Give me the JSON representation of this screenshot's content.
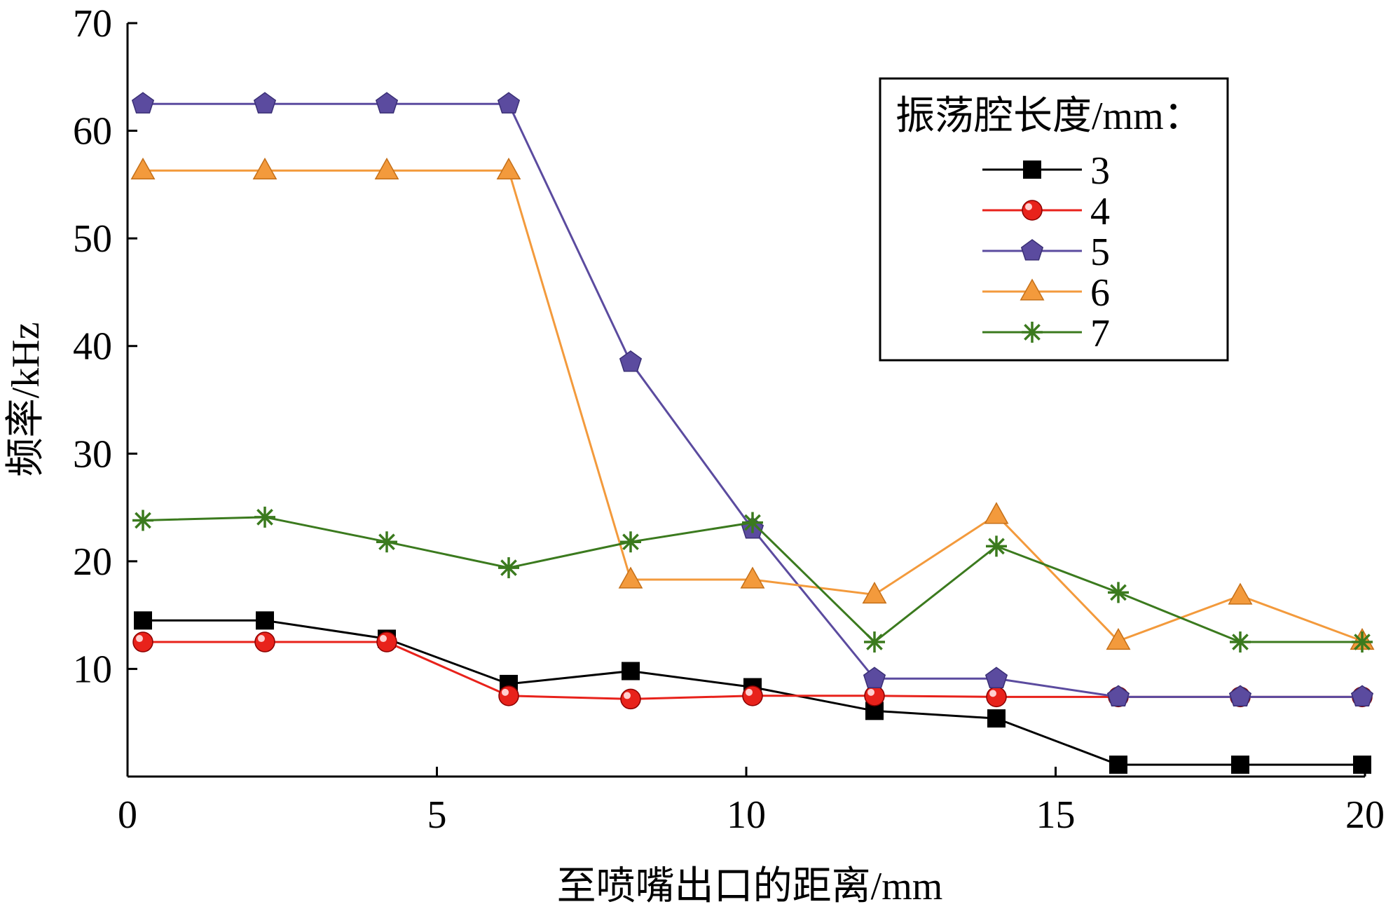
{
  "chart_data": {
    "type": "line",
    "title": "",
    "xlabel": "至喷嘴出口的距离/mm",
    "ylabel": "频率/kHz",
    "xlim": [
      0,
      20
    ],
    "ylim": [
      0,
      70
    ],
    "x_ticks": [
      "0",
      "5",
      "10",
      "15",
      "20"
    ],
    "y_ticks": [
      "10",
      "20",
      "30",
      "40",
      "50",
      "60",
      "70"
    ],
    "x_tick_values": [
      0,
      5,
      10,
      15,
      20
    ],
    "y_tick_values": [
      10,
      20,
      30,
      40,
      50,
      60,
      70
    ],
    "grid": false,
    "legend_position": "top-right",
    "legend_title": "振荡腔长度/mm：",
    "x": [
      0,
      2,
      4,
      6,
      8,
      10,
      12,
      14,
      16,
      18,
      20
    ],
    "series": [
      {
        "name": "3",
        "color": "#000000",
        "marker": "square",
        "values": [
          14.5,
          14.5,
          12.8,
          8.6,
          9.8,
          8.3,
          6.1,
          5.4,
          1.1,
          1.1,
          1.1
        ]
      },
      {
        "name": "4",
        "color": "#e8221b",
        "marker": "circle",
        "values": [
          12.5,
          12.5,
          12.5,
          7.5,
          7.2,
          7.5,
          7.5,
          7.4,
          7.4,
          7.4,
          7.4
        ]
      },
      {
        "name": "5",
        "color": "#5b4b9f",
        "marker": "pentagon",
        "values": [
          62.5,
          62.5,
          62.5,
          62.5,
          38.5,
          23.0,
          9.1,
          9.1,
          7.4,
          7.4,
          7.4
        ]
      },
      {
        "name": "6",
        "color": "#f39a3c",
        "marker": "triangle",
        "values": [
          56.3,
          56.3,
          56.3,
          56.3,
          18.3,
          18.3,
          16.9,
          24.3,
          12.6,
          16.8,
          12.6
        ]
      },
      {
        "name": "7",
        "color": "#3b7a1e",
        "marker": "asterisk",
        "values": [
          23.8,
          24.1,
          21.8,
          19.4,
          21.8,
          23.6,
          12.5,
          21.4,
          17.1,
          12.5,
          12.5
        ]
      }
    ]
  }
}
